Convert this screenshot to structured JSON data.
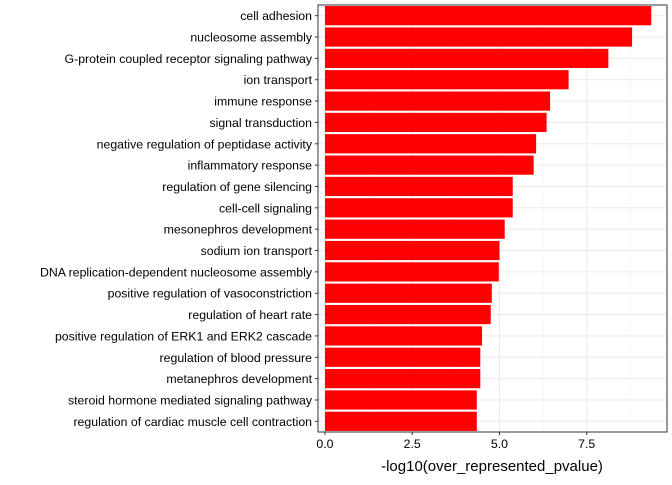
{
  "chart_data": {
    "type": "bar",
    "orientation": "horizontal",
    "title": "",
    "xlabel": "-log10(over_represented_pvalue)",
    "ylabel": "",
    "xlim": [
      -0.2,
      9.8
    ],
    "x_ticks": [
      0.0,
      2.5,
      5.0,
      7.5
    ],
    "x_tick_labels": [
      "0.0",
      "2.5",
      "5.0",
      "7.5"
    ],
    "grid": true,
    "bar_color": "#ff0000",
    "categories": [
      "cell adhesion",
      "nucleosome assembly",
      "G-protein coupled receptor signaling pathway",
      "ion transport",
      "immune response",
      "signal transduction",
      "negative regulation of peptidase activity",
      "inflammatory response",
      "regulation of gene silencing",
      "cell-cell signaling",
      "mesonephros development",
      "sodium ion transport",
      "DNA replication-dependent nucleosome assembly",
      "positive regulation of vasoconstriction",
      "regulation of heart rate",
      "positive regulation of ERK1 and ERK2 cascade",
      "regulation of blood pressure",
      "metanephros development",
      "steroid hormone mediated signaling pathway",
      "regulation of cardiac muscle cell contraction"
    ],
    "values": [
      9.35,
      8.8,
      8.12,
      6.98,
      6.45,
      6.35,
      6.05,
      5.98,
      5.38,
      5.38,
      5.15,
      5.0,
      4.98,
      4.78,
      4.75,
      4.5,
      4.45,
      4.45,
      4.35,
      4.35
    ]
  }
}
